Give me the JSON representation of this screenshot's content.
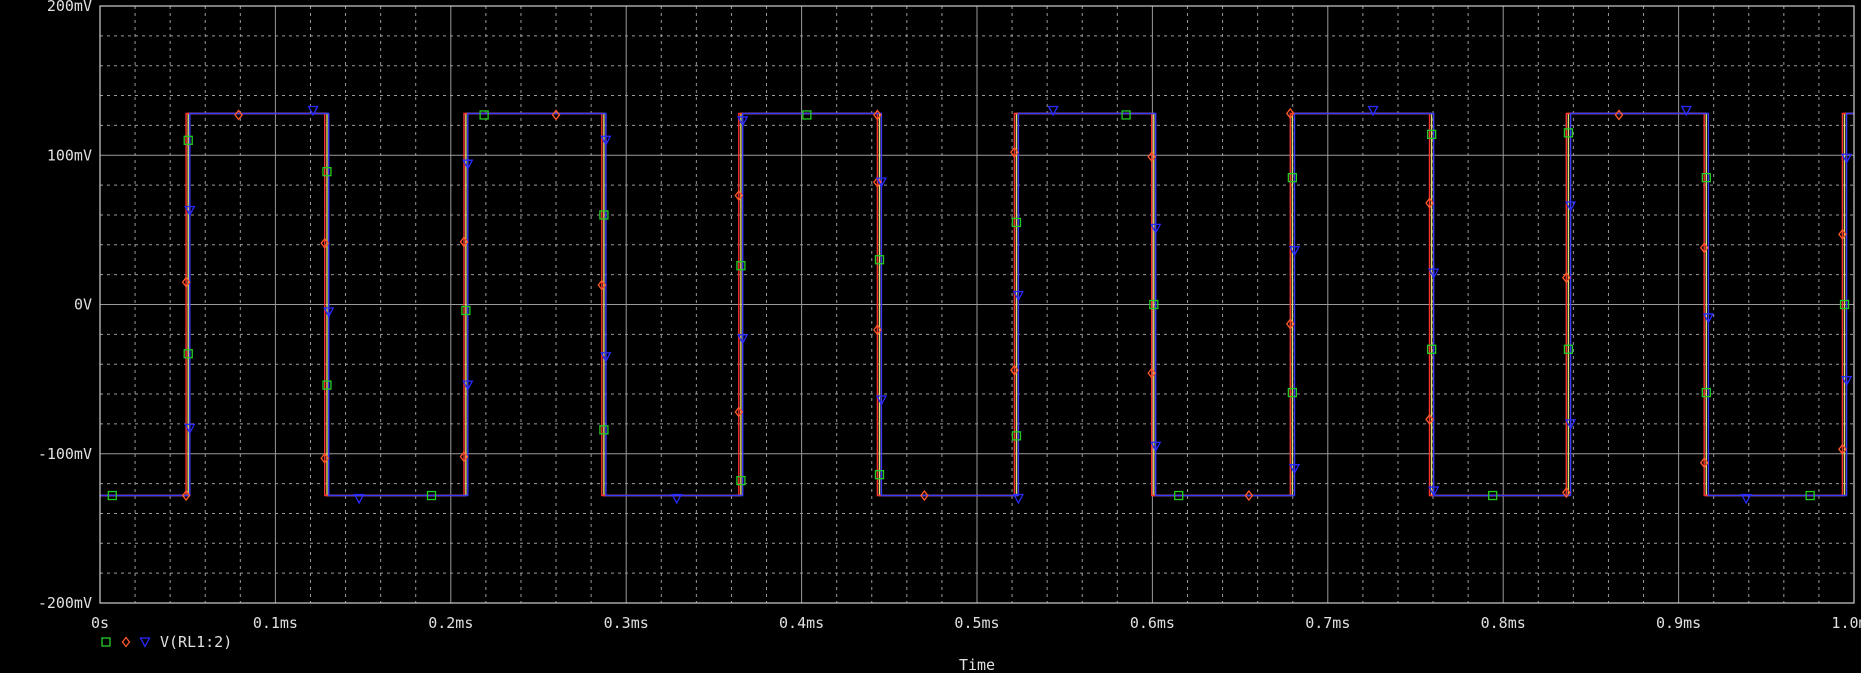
{
  "chart_data": {
    "type": "line",
    "title": "",
    "xlabel": "Time",
    "ylabel": "",
    "xlim": [
      0,
      1.0
    ],
    "ylim": [
      -200,
      200
    ],
    "x_unit": "ms",
    "y_unit": "mV",
    "x_ticks": [
      0,
      0.1,
      0.2,
      0.3,
      0.4,
      0.5,
      0.6,
      0.7,
      0.8,
      0.9,
      1.0
    ],
    "x_tick_labels": [
      "0s",
      "0.1ms",
      "0.2ms",
      "0.3ms",
      "0.4ms",
      "0.5ms",
      "0.6ms",
      "0.7ms",
      "0.8ms",
      "0.9ms",
      "1.0ms"
    ],
    "y_ticks": [
      200,
      100,
      0,
      -100,
      -200
    ],
    "y_tick_labels": [
      "200mV",
      "100mV",
      "0V",
      "-100mV",
      "-200mV"
    ],
    "grid": true,
    "background": "#000000",
    "grid_color": "#9a9a9a",
    "text_color": "#e0e0e0",
    "legend": {
      "placement": "bottom-left",
      "label": "V(RL1:2)"
    },
    "amplitude_mV": 128,
    "series": [
      {
        "color": "#22cc22",
        "line_color": "#e0e070",
        "marker": "square",
        "edges_ms": [
          0.0503,
          0.1294,
          0.2086,
          0.2873,
          0.3654,
          0.4444,
          0.5225,
          0.6008,
          0.6798,
          0.7592,
          0.8372,
          0.9158,
          0.9946
        ],
        "marker_points": [
          [
            0.007,
            -128
          ],
          [
            0.0503,
            110
          ],
          [
            0.0503,
            -33
          ],
          [
            0.1294,
            89
          ],
          [
            0.1294,
            -54
          ],
          [
            0.2086,
            -4
          ],
          [
            0.219,
            127
          ],
          [
            0.189,
            -128
          ],
          [
            0.2873,
            60
          ],
          [
            0.2873,
            -84
          ],
          [
            0.3654,
            26
          ],
          [
            0.3654,
            -118
          ],
          [
            0.403,
            127
          ],
          [
            0.4444,
            30
          ],
          [
            0.4444,
            -114
          ],
          [
            0.5225,
            55
          ],
          [
            0.5225,
            -88
          ],
          [
            0.585,
            127
          ],
          [
            0.6008,
            0
          ],
          [
            0.615,
            -128
          ],
          [
            0.6798,
            85
          ],
          [
            0.6798,
            -59
          ],
          [
            0.7592,
            114
          ],
          [
            0.7592,
            -30
          ],
          [
            0.794,
            -128
          ],
          [
            0.8372,
            115
          ],
          [
            0.8372,
            -30
          ],
          [
            0.9158,
            85
          ],
          [
            0.9158,
            -59
          ],
          [
            0.975,
            -128
          ],
          [
            0.9946,
            0
          ]
        ]
      },
      {
        "color": "#ff5a2a",
        "line_color": "#ff3030",
        "marker": "diamond",
        "edges_ms": [
          0.0491,
          0.1281,
          0.2075,
          0.2861,
          0.3642,
          0.4432,
          0.5213,
          0.5996,
          0.6786,
          0.758,
          0.836,
          0.9146,
          0.9934
        ],
        "marker_points": [
          [
            0.0491,
            -128
          ],
          [
            0.0491,
            15
          ],
          [
            0.079,
            127
          ],
          [
            0.1281,
            41
          ],
          [
            0.1281,
            -103
          ],
          [
            0.2075,
            42
          ],
          [
            0.2075,
            -102
          ],
          [
            0.26,
            127
          ],
          [
            0.2861,
            13
          ],
          [
            0.3642,
            73
          ],
          [
            0.3642,
            -72
          ],
          [
            0.4432,
            127
          ],
          [
            0.4432,
            -17
          ],
          [
            0.4432,
            82
          ],
          [
            0.47,
            -128
          ],
          [
            0.5213,
            102
          ],
          [
            0.5213,
            -44
          ],
          [
            0.5996,
            99
          ],
          [
            0.5996,
            -46
          ],
          [
            0.655,
            -128
          ],
          [
            0.6786,
            -13
          ],
          [
            0.6786,
            128
          ],
          [
            0.758,
            68
          ],
          [
            0.758,
            -77
          ],
          [
            0.836,
            18
          ],
          [
            0.836,
            -126
          ],
          [
            0.866,
            127
          ],
          [
            0.9146,
            38
          ],
          [
            0.9146,
            -106
          ],
          [
            0.9934,
            47
          ],
          [
            0.9934,
            -97
          ]
        ]
      },
      {
        "color": "#2a2aff",
        "line_color": "#3a3aff",
        "marker": "triangle-down",
        "edges_ms": [
          0.0512,
          0.1304,
          0.2097,
          0.2884,
          0.3664,
          0.4455,
          0.5236,
          0.6019,
          0.681,
          0.7604,
          0.8384,
          0.917,
          0.9958
        ],
        "marker_points": [
          [
            0.0512,
            63
          ],
          [
            0.0512,
            -83
          ],
          [
            0.1215,
            130
          ],
          [
            0.1304,
            -5
          ],
          [
            0.1477,
            -130
          ],
          [
            0.2097,
            94
          ],
          [
            0.2097,
            -54
          ],
          [
            0.2884,
            110
          ],
          [
            0.2884,
            -35
          ],
          [
            0.3288,
            -130
          ],
          [
            0.3664,
            -23
          ],
          [
            0.3664,
            123
          ],
          [
            0.4455,
            82
          ],
          [
            0.4455,
            -64
          ],
          [
            0.5236,
            6
          ],
          [
            0.5236,
            -130
          ],
          [
            0.5434,
            130
          ],
          [
            0.6019,
            51
          ],
          [
            0.6019,
            -95
          ],
          [
            0.681,
            36
          ],
          [
            0.681,
            -110
          ],
          [
            0.7258,
            130
          ],
          [
            0.7604,
            21
          ],
          [
            0.7604,
            -125
          ],
          [
            0.8384,
            66
          ],
          [
            0.8384,
            -80
          ],
          [
            0.9044,
            130
          ],
          [
            0.917,
            -9
          ],
          [
            0.9385,
            -130
          ],
          [
            0.9958,
            98
          ],
          [
            0.9958,
            -51
          ]
        ]
      }
    ]
  }
}
